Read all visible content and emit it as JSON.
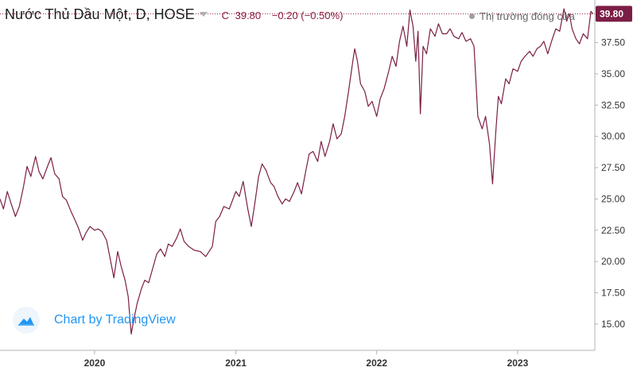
{
  "header": {
    "title": "Nước Thủ Dầu Một, D, HOSE",
    "close_label": "C",
    "close_value": "39.80",
    "change": "−0.20 (−0.50%)",
    "status": "Thị trường đóng cửa"
  },
  "branding": {
    "label": "Chart by TradingView"
  },
  "colors": {
    "line": "#7b1e45",
    "quote": "#8c1a3a",
    "axis_text": "#333333",
    "brand": "#2196f3"
  },
  "chart_data": {
    "type": "line",
    "title": "",
    "xlabel": "",
    "ylabel": "",
    "x_range": [
      "2019-05-01",
      "2023-07-20"
    ],
    "ylim": [
      12.9,
      40.9
    ],
    "y_ticks": [
      "15.00",
      "17.50",
      "20.00",
      "22.50",
      "25.00",
      "27.50",
      "30.00",
      "32.50",
      "35.00",
      "37.50"
    ],
    "x_ticks": [
      {
        "label": "2020",
        "date": "2020-01-01"
      },
      {
        "label": "2021",
        "date": "2021-01-01"
      },
      {
        "label": "2022",
        "date": "2022-01-01"
      },
      {
        "label": "2023",
        "date": "2023-01-01"
      }
    ],
    "last_price": {
      "value": 39.8,
      "label": "39.80"
    },
    "grid": false,
    "series": [
      {
        "points": [
          [
            "2019-05-01",
            25.0
          ],
          [
            "2019-05-10",
            24.2
          ],
          [
            "2019-05-20",
            25.6
          ],
          [
            "2019-05-30",
            24.6
          ],
          [
            "2019-06-10",
            23.6
          ],
          [
            "2019-06-20",
            24.4
          ],
          [
            "2019-07-01",
            26.0
          ],
          [
            "2019-07-10",
            27.6
          ],
          [
            "2019-07-20",
            26.8
          ],
          [
            "2019-08-01",
            28.4
          ],
          [
            "2019-08-10",
            27.2
          ],
          [
            "2019-08-20",
            26.6
          ],
          [
            "2019-09-01",
            27.6
          ],
          [
            "2019-09-10",
            28.3
          ],
          [
            "2019-09-20",
            27.0
          ],
          [
            "2019-10-01",
            26.6
          ],
          [
            "2019-10-10",
            25.2
          ],
          [
            "2019-10-20",
            24.9
          ],
          [
            "2019-11-01",
            24.0
          ],
          [
            "2019-11-10",
            23.4
          ],
          [
            "2019-11-20",
            22.7
          ],
          [
            "2019-12-01",
            21.7
          ],
          [
            "2019-12-10",
            22.3
          ],
          [
            "2019-12-20",
            22.8
          ],
          [
            "2020-01-01",
            22.5
          ],
          [
            "2020-01-10",
            22.6
          ],
          [
            "2020-01-20",
            22.4
          ],
          [
            "2020-02-01",
            21.7
          ],
          [
            "2020-02-10",
            20.3
          ],
          [
            "2020-02-20",
            18.7
          ],
          [
            "2020-03-01",
            20.8
          ],
          [
            "2020-03-10",
            19.6
          ],
          [
            "2020-03-20",
            18.5
          ],
          [
            "2020-03-28",
            17.2
          ],
          [
            "2020-04-05",
            14.2
          ],
          [
            "2020-04-12",
            15.4
          ],
          [
            "2020-04-20",
            16.6
          ],
          [
            "2020-05-01",
            17.8
          ],
          [
            "2020-05-10",
            18.5
          ],
          [
            "2020-05-20",
            18.3
          ],
          [
            "2020-06-01",
            19.6
          ],
          [
            "2020-06-10",
            20.6
          ],
          [
            "2020-06-20",
            21.0
          ],
          [
            "2020-07-01",
            20.4
          ],
          [
            "2020-07-10",
            21.4
          ],
          [
            "2020-07-20",
            21.2
          ],
          [
            "2020-08-01",
            21.9
          ],
          [
            "2020-08-10",
            22.6
          ],
          [
            "2020-08-20",
            21.6
          ],
          [
            "2020-09-01",
            21.2
          ],
          [
            "2020-09-15",
            20.9
          ],
          [
            "2020-10-01",
            20.8
          ],
          [
            "2020-10-15",
            20.4
          ],
          [
            "2020-11-01",
            21.2
          ],
          [
            "2020-11-10",
            23.2
          ],
          [
            "2020-11-20",
            23.6
          ],
          [
            "2020-12-01",
            24.4
          ],
          [
            "2020-12-15",
            24.2
          ],
          [
            "2021-01-01",
            25.6
          ],
          [
            "2021-01-10",
            25.2
          ],
          [
            "2021-01-20",
            26.4
          ],
          [
            "2021-02-01",
            24.2
          ],
          [
            "2021-02-10",
            22.8
          ],
          [
            "2021-02-20",
            24.8
          ],
          [
            "2021-03-01",
            26.8
          ],
          [
            "2021-03-10",
            27.8
          ],
          [
            "2021-03-20",
            27.3
          ],
          [
            "2021-04-01",
            26.3
          ],
          [
            "2021-04-10",
            26.0
          ],
          [
            "2021-04-20",
            25.2
          ],
          [
            "2021-05-01",
            24.6
          ],
          [
            "2021-05-10",
            25.0
          ],
          [
            "2021-05-20",
            24.8
          ],
          [
            "2021-06-01",
            25.6
          ],
          [
            "2021-06-10",
            26.3
          ],
          [
            "2021-06-20",
            25.4
          ],
          [
            "2021-07-01",
            27.2
          ],
          [
            "2021-07-10",
            28.6
          ],
          [
            "2021-07-20",
            28.8
          ],
          [
            "2021-08-01",
            28.0
          ],
          [
            "2021-08-10",
            29.6
          ],
          [
            "2021-08-20",
            28.4
          ],
          [
            "2021-09-01",
            29.6
          ],
          [
            "2021-09-10",
            31.0
          ],
          [
            "2021-09-20",
            29.8
          ],
          [
            "2021-10-01",
            30.2
          ],
          [
            "2021-10-10",
            31.6
          ],
          [
            "2021-10-20",
            33.6
          ],
          [
            "2021-11-01",
            36.2
          ],
          [
            "2021-11-05",
            37.0
          ],
          [
            "2021-11-12",
            36.0
          ],
          [
            "2021-11-20",
            34.2
          ],
          [
            "2021-12-01",
            33.6
          ],
          [
            "2021-12-10",
            32.4
          ],
          [
            "2021-12-20",
            32.8
          ],
          [
            "2022-01-01",
            31.6
          ],
          [
            "2022-01-10",
            33.0
          ],
          [
            "2022-01-20",
            33.8
          ],
          [
            "2022-02-01",
            35.2
          ],
          [
            "2022-02-10",
            36.4
          ],
          [
            "2022-02-20",
            35.6
          ],
          [
            "2022-03-01",
            37.6
          ],
          [
            "2022-03-10",
            38.8
          ],
          [
            "2022-03-20",
            37.2
          ],
          [
            "2022-03-28",
            40.1
          ],
          [
            "2022-04-05",
            38.8
          ],
          [
            "2022-04-12",
            36.0
          ],
          [
            "2022-04-18",
            38.4
          ],
          [
            "2022-04-24",
            31.8
          ],
          [
            "2022-05-01",
            37.2
          ],
          [
            "2022-05-10",
            36.6
          ],
          [
            "2022-05-20",
            38.6
          ],
          [
            "2022-06-01",
            38.0
          ],
          [
            "2022-06-10",
            39.0
          ],
          [
            "2022-06-20",
            38.2
          ],
          [
            "2022-07-01",
            38.2
          ],
          [
            "2022-07-10",
            38.6
          ],
          [
            "2022-07-20",
            38.0
          ],
          [
            "2022-08-01",
            37.8
          ],
          [
            "2022-08-10",
            38.3
          ],
          [
            "2022-08-20",
            37.6
          ],
          [
            "2022-09-01",
            37.8
          ],
          [
            "2022-09-10",
            37.2
          ],
          [
            "2022-09-20",
            31.6
          ],
          [
            "2022-10-01",
            30.6
          ],
          [
            "2022-10-10",
            31.6
          ],
          [
            "2022-10-20",
            29.4
          ],
          [
            "2022-10-28",
            26.2
          ],
          [
            "2022-11-05",
            30.2
          ],
          [
            "2022-11-12",
            33.2
          ],
          [
            "2022-11-20",
            32.6
          ],
          [
            "2022-12-01",
            34.6
          ],
          [
            "2022-12-10",
            34.2
          ],
          [
            "2022-12-20",
            35.4
          ],
          [
            "2023-01-01",
            35.2
          ],
          [
            "2023-01-10",
            36.0
          ],
          [
            "2023-01-20",
            36.4
          ],
          [
            "2023-02-01",
            36.8
          ],
          [
            "2023-02-10",
            36.4
          ],
          [
            "2023-02-20",
            37.0
          ],
          [
            "2023-03-01",
            37.2
          ],
          [
            "2023-03-10",
            37.6
          ],
          [
            "2023-03-20",
            36.6
          ],
          [
            "2023-04-01",
            37.8
          ],
          [
            "2023-04-10",
            38.6
          ],
          [
            "2023-04-20",
            38.4
          ],
          [
            "2023-05-01",
            40.2
          ],
          [
            "2023-05-08",
            39.2
          ],
          [
            "2023-05-15",
            39.8
          ],
          [
            "2023-05-22",
            38.6
          ],
          [
            "2023-06-01",
            37.8
          ],
          [
            "2023-06-10",
            37.4
          ],
          [
            "2023-06-20",
            38.2
          ],
          [
            "2023-07-01",
            37.8
          ],
          [
            "2023-07-10",
            40.0
          ],
          [
            "2023-07-15",
            39.8
          ]
        ]
      }
    ]
  }
}
